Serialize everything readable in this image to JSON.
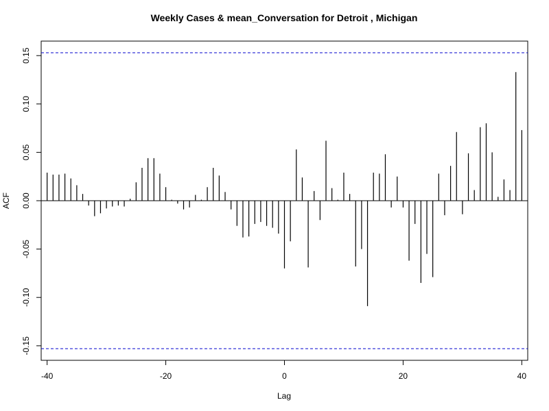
{
  "chart_data": {
    "type": "bar",
    "title": "Weekly Cases & mean_Conversation for Detroit , Michigan",
    "xlabel": "Lag",
    "ylabel": "ACF",
    "xlim": [
      -41,
      41
    ],
    "ylim": [
      -0.165,
      0.165
    ],
    "x_ticks": [
      -40,
      -20,
      0,
      20,
      40
    ],
    "x_tick_labels": [
      "-40",
      "-20",
      "0",
      "20",
      "40"
    ],
    "y_ticks": [
      -0.15,
      -0.1,
      -0.05,
      0.0,
      0.05,
      0.1,
      0.15
    ],
    "y_tick_labels": [
      "-0.15",
      "-0.10",
      "-0.05",
      "0.00",
      "0.05",
      "0.10",
      "0.15"
    ],
    "confidence_bounds": [
      0.153,
      -0.153
    ],
    "bound_color": "#0000cc",
    "bar_color": "#000000",
    "grid": false,
    "lags": [
      -40,
      -39,
      -38,
      -37,
      -36,
      -35,
      -34,
      -33,
      -32,
      -31,
      -30,
      -29,
      -28,
      -27,
      -26,
      -25,
      -24,
      -23,
      -22,
      -21,
      -20,
      -19,
      -18,
      -17,
      -16,
      -15,
      -14,
      -13,
      -12,
      -11,
      -10,
      -9,
      -8,
      -7,
      -6,
      -5,
      -4,
      -3,
      -2,
      -1,
      0,
      1,
      2,
      3,
      4,
      5,
      6,
      7,
      8,
      9,
      10,
      11,
      12,
      13,
      14,
      15,
      16,
      17,
      18,
      19,
      20,
      21,
      22,
      23,
      24,
      25,
      26,
      27,
      28,
      29,
      30,
      31,
      32,
      33,
      34,
      35,
      36,
      37,
      38,
      39,
      40
    ],
    "values": [
      0.029,
      0.027,
      0.027,
      0.028,
      0.023,
      0.016,
      0.007,
      -0.005,
      -0.016,
      -0.013,
      -0.008,
      -0.006,
      -0.005,
      -0.006,
      0.002,
      0.019,
      0.034,
      0.044,
      0.044,
      0.028,
      0.014,
      0.001,
      -0.003,
      -0.009,
      -0.007,
      0.006,
      0.001,
      0.014,
      0.034,
      0.026,
      0.009,
      -0.009,
      -0.026,
      -0.038,
      -0.037,
      -0.024,
      -0.022,
      -0.026,
      -0.028,
      -0.034,
      -0.07,
      -0.042,
      0.053,
      0.024,
      -0.069,
      0.01,
      -0.02,
      0.062,
      0.013,
      0.001,
      0.029,
      0.007,
      -0.068,
      -0.05,
      -0.109,
      0.029,
      0.028,
      0.048,
      -0.007,
      0.025,
      -0.007,
      -0.062,
      -0.024,
      -0.085,
      -0.055,
      -0.079,
      0.028,
      -0.015,
      0.036,
      0.071,
      -0.014,
      0.049,
      0.011,
      0.076,
      0.08,
      0.05,
      0.004,
      0.022,
      0.011,
      0.133,
      0.073
    ]
  }
}
